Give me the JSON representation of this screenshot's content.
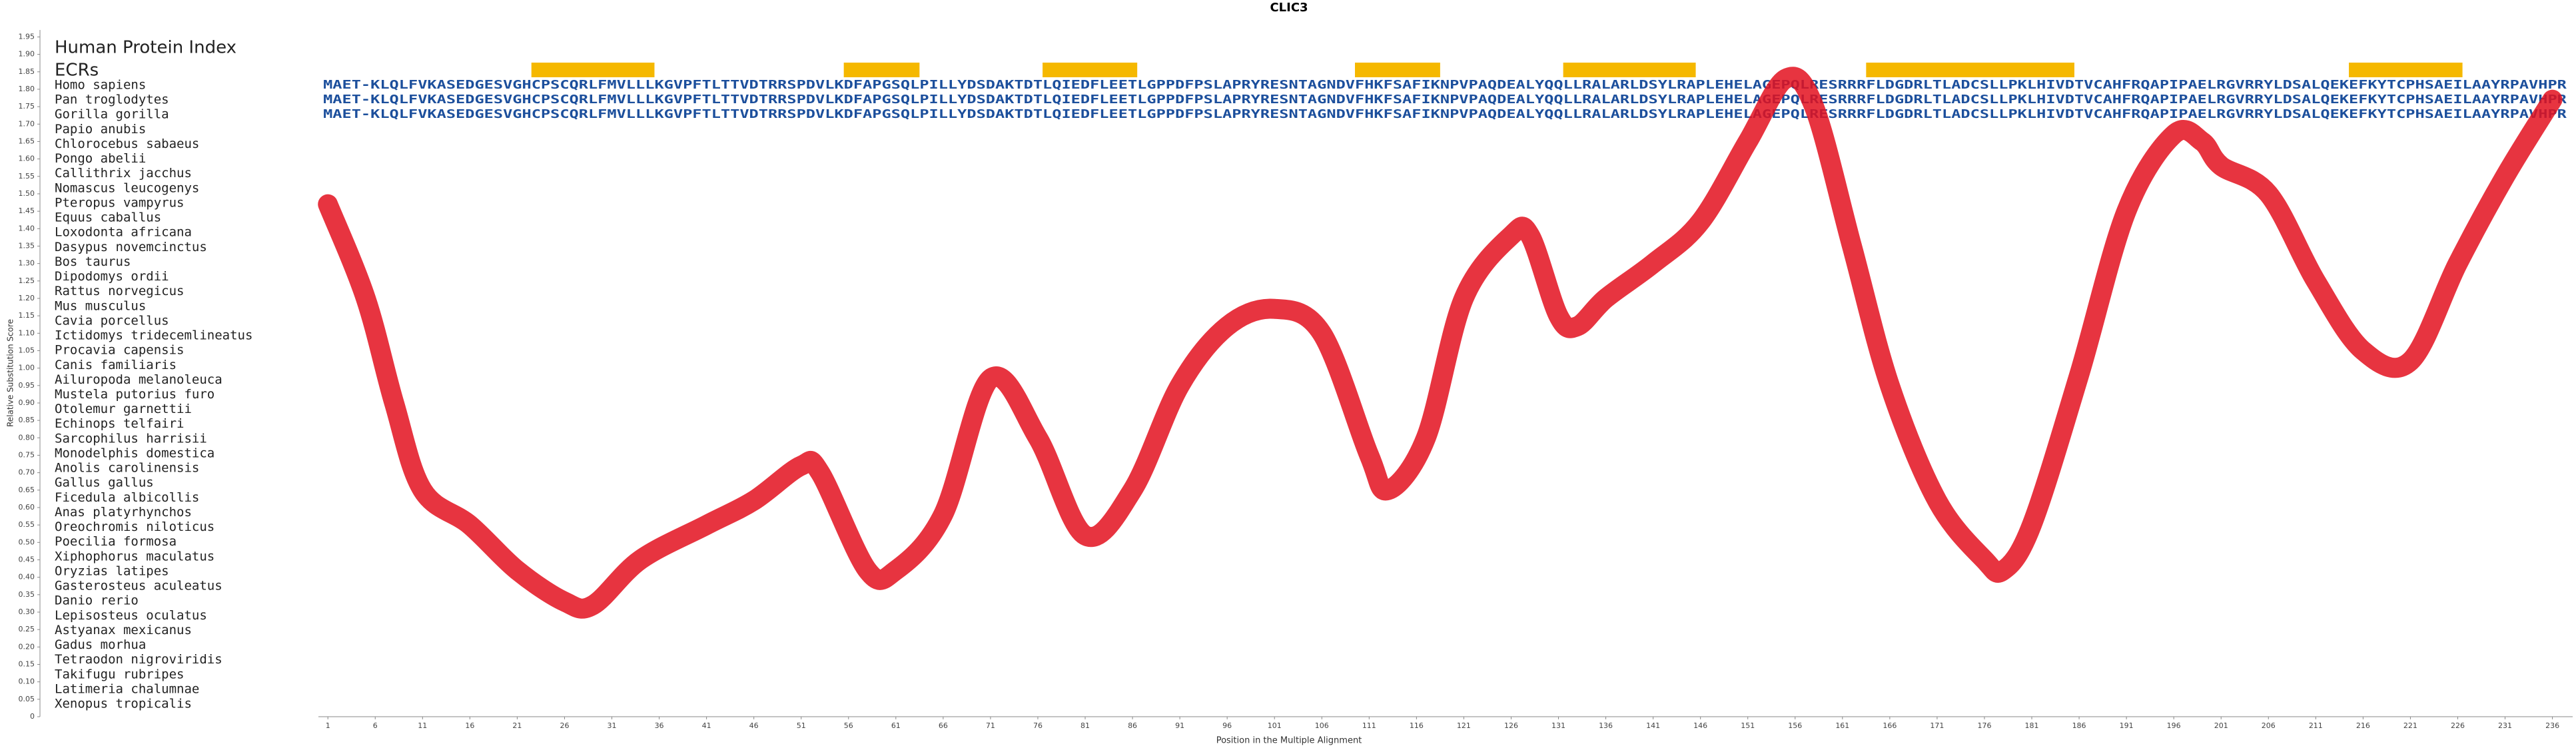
{
  "chart_data": {
    "type": "line",
    "title": "CLIC3",
    "xlabel": "Position in the Multiple Alignment",
    "ylabel": "Relative Substitution Score",
    "row_header": "Human Protein Index",
    "ecr_label": "ECRs",
    "color": "#e3101e",
    "ecr_color": "#f5b800",
    "xlim": [
      0,
      238
    ],
    "ylim": [
      0,
      1.97
    ],
    "xticks": [
      1,
      6,
      11,
      16,
      21,
      26,
      31,
      36,
      41,
      46,
      51,
      56,
      61,
      66,
      71,
      76,
      81,
      86,
      91,
      96,
      101,
      106,
      111,
      116,
      121,
      126,
      131,
      136,
      141,
      146,
      151,
      156,
      161,
      166,
      171,
      176,
      181,
      186,
      191,
      196,
      201,
      206,
      211,
      216,
      221,
      226,
      231,
      236
    ],
    "yticks": [
      0,
      {
        "value": 0.05,
        "label": "0.05"
      },
      {
        "value": 0.1,
        "label": "0.10"
      },
      {
        "value": 0.15,
        "label": "0.15"
      },
      {
        "value": 0.2,
        "label": "0.20"
      },
      {
        "value": 0.25,
        "label": "0.25"
      },
      {
        "value": 0.3,
        "label": "0.30"
      },
      {
        "value": 0.35,
        "label": "0.35"
      },
      {
        "value": 0.4,
        "label": "0.40"
      },
      {
        "value": 0.45,
        "label": "0.45"
      },
      {
        "value": 0.5,
        "label": "0.50"
      },
      {
        "value": 0.55,
        "label": "0.55"
      },
      {
        "value": 0.6,
        "label": "0.60"
      },
      {
        "value": 0.65,
        "label": "0.65"
      },
      {
        "value": 0.7,
        "label": "0.70"
      },
      {
        "value": 0.75,
        "label": "0.75"
      },
      {
        "value": 0.8,
        "label": "0.80"
      },
      {
        "value": 0.85,
        "label": "0.85"
      },
      {
        "value": 0.9,
        "label": "0.90"
      },
      {
        "value": 0.95,
        "label": "0.95"
      },
      {
        "value": 1,
        "label": "1.00"
      },
      {
        "value": 1.05,
        "label": "1.05"
      },
      {
        "value": 1.1,
        "label": "1.10"
      },
      {
        "value": 1.15,
        "label": "1.15"
      },
      {
        "value": 1.2,
        "label": "1.20"
      },
      {
        "value": 1.25,
        "label": "1.25"
      },
      {
        "value": 1.3,
        "label": "1.30"
      },
      {
        "value": 1.35,
        "label": "1.35"
      },
      {
        "value": 1.4,
        "label": "1.40"
      },
      {
        "value": 1.45,
        "label": "1.45"
      },
      {
        "value": 1.5,
        "label": "1.50"
      },
      {
        "value": 1.55,
        "label": "1.55"
      },
      {
        "value": 1.6,
        "label": "1.60"
      },
      {
        "value": 1.65,
        "label": "1.65"
      },
      {
        "value": 1.7,
        "label": "1.70"
      },
      {
        "value": 1.75,
        "label": "1.75"
      },
      {
        "value": 1.8,
        "label": "1.80"
      },
      {
        "value": 1.85,
        "label": "1.85"
      },
      {
        "value": 1.9,
        "label": "1.90"
      },
      {
        "value": 1.95,
        "label": "1.95"
      }
    ],
    "x": [
      1,
      5,
      8,
      11,
      16,
      21,
      26,
      29,
      34,
      41,
      46,
      51,
      53,
      58,
      61,
      66,
      71,
      76,
      81,
      86,
      91,
      96,
      101,
      106,
      111,
      113,
      117,
      121,
      126,
      128,
      131,
      133,
      136,
      141,
      146,
      151,
      155,
      158,
      162,
      166,
      171,
      176,
      178,
      181,
      186,
      191,
      196,
      199,
      201,
      206,
      211,
      216,
      221,
      226,
      231,
      236
    ],
    "values": [
      1.47,
      1.2,
      0.9,
      0.65,
      0.55,
      0.42,
      0.33,
      0.32,
      0.45,
      0.55,
      0.62,
      0.72,
      0.7,
      0.42,
      0.42,
      0.58,
      0.97,
      0.8,
      0.52,
      0.65,
      0.95,
      1.12,
      1.17,
      1.1,
      0.75,
      0.65,
      0.8,
      1.2,
      1.38,
      1.38,
      1.15,
      1.12,
      1.2,
      1.3,
      1.42,
      1.65,
      1.83,
      1.75,
      1.35,
      0.95,
      0.62,
      0.45,
      0.42,
      0.55,
      0.98,
      1.45,
      1.67,
      1.65,
      1.58,
      1.5,
      1.25,
      1.05,
      1.02,
      1.3,
      1.55,
      1.77
    ],
    "ecrs": [
      [
        23,
        35
      ],
      [
        56,
        63
      ],
      [
        77,
        86
      ],
      [
        110,
        118
      ],
      [
        132,
        145
      ],
      [
        164,
        185
      ],
      [
        215,
        226
      ]
    ],
    "species": [
      "Homo sapiens",
      "Pan troglodytes",
      "Gorilla gorilla",
      "Papio anubis",
      "Chlorocebus sabaeus",
      "Pongo abelii",
      "Callithrix jacchus",
      "Nomascus leucogenys",
      "Pteropus vampyrus",
      "Equus caballus",
      "Loxodonta africana",
      "Dasypus novemcinctus",
      "Bos taurus",
      "Dipodomys ordii",
      "Rattus norvegicus",
      "Mus musculus",
      "Cavia porcellus",
      "Ictidomys tridecemlineatus",
      "Procavia capensis",
      "Canis familiaris",
      "Ailuropoda melanoleuca",
      "Mustela putorius furo",
      "Otolemur garnettii",
      "Echinops telfairi",
      "Sarcophilus harrisii",
      "Monodelphis domestica",
      "Anolis carolinensis",
      "Gallus gallus",
      "Ficedula albicollis",
      "Anas platyrhynchos",
      "Oreochromis niloticus",
      "Poecilia formosa",
      "Xiphophorus maculatus",
      "Oryzias latipes",
      "Gasterosteus aculeatus",
      "Danio rerio",
      "Lepisosteus oculatus",
      "Astyanax mexicanus",
      "Gadus morhua",
      "Tetraodon nigroviridis",
      "Takifugu rubripes",
      "Latimeria chalumnae",
      "Xenopus tropicalis"
    ],
    "sequences": [
      "MAET-KLQLFVKASEDGESVGHCPSCQRLFMVLLLKGVPFTLTTVDTRRSPDVLKDFAPGSQLPILLYDSDAKTDTLQIEDFLEETLGPPDFPSLAPRYRESNTAGNDVFHKFSAFIKNPVPAQDEALYQQLLRALARLDSYLRAPLEHELAGEPQLRESRRRFLDGDRLTLADCSLLPKLHIVDTVCAHFRQAPIPAELRGVRRYLDSALQEKEFKYTCPHSAEILAAYRPAVHPR",
      "MAET-KLQLFVKASEDGESVGHCPSCQRLFMVLLLKGVPFTLTTVDTRRSPDVLKDFAPGSQLPILLYDSDAKTDTLQIEDFLEETLGPPDFPSLAPRYRESNTAGNDVFHKFSAFIKNPVPAQDEALYQQLLRALARLDSYLRAPLEHELAGEPQLRESRRRFLDGDRLTLADCSLLPKLHIVDTVCAHFRQAPIPAELRGVRRYLDSALQEKEFKYTCPHSAEILAAYRPAVHPR",
      "MAET-KLQLFVKASEDGESVGHCPSCQRLFMVLLLKGVPFTLTTVDTRRSPDVLKDFAPGSQLPILLYDSDAKTDTLQIEDFLEETLGPPDFPSLAPRYRESNTAGNDVFHKFSAFIKNPVPAQDEALYQQLLRALARLDSYLRAPLEHELAGEPQLRESRRRFLDGDRLTLADCSLLPKLHIVDTVCAHFRQAPIPAELRGVRRYLDSALQEKEFKYTCPHSAEILAAYRPAVHPR"
    ]
  }
}
